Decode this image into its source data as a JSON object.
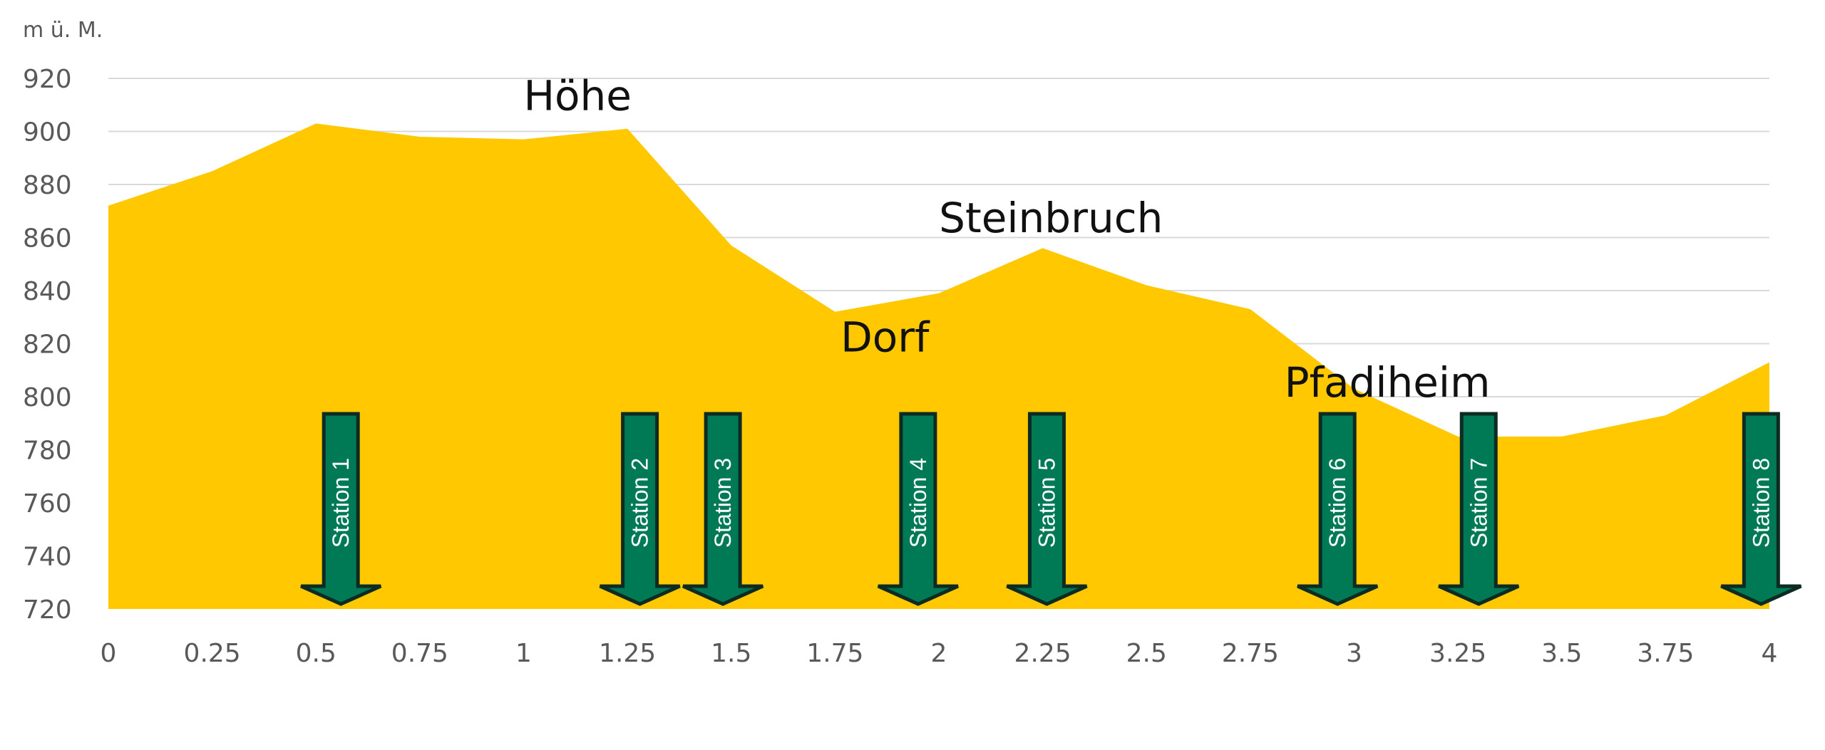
{
  "chart_data": {
    "type": "area",
    "ylabel": "m ü. M.",
    "xlabel": "",
    "x": [
      0,
      0.25,
      0.5,
      0.75,
      1,
      1.25,
      1.5,
      1.75,
      2,
      2.25,
      2.5,
      2.75,
      3,
      3.25,
      3.5,
      3.75,
      4
    ],
    "y": [
      872,
      885,
      903,
      898,
      897,
      901,
      857,
      832,
      839,
      856,
      842,
      833,
      803,
      785,
      785,
      793,
      813
    ],
    "xlim": [
      0,
      4
    ],
    "ylim": [
      720,
      920
    ],
    "x_ticks": [
      "0",
      "0.25",
      "0.5",
      "0.75",
      "1",
      "1.25",
      "1.5",
      "1.75",
      "2",
      "2.25",
      "2.5",
      "2.75",
      "3",
      "3.25",
      "3.5",
      "3.75",
      "4"
    ],
    "y_ticks": [
      "720",
      "740",
      "760",
      "780",
      "800",
      "820",
      "840",
      "860",
      "880",
      "900",
      "920"
    ],
    "grid": true,
    "colors": {
      "area": "#FFC800",
      "station": "#007A55",
      "station_border": "#0D2B23",
      "grid": "#D9D9D9"
    },
    "annotations": [
      {
        "text": "Höhe",
        "x": 1.13,
        "y": 908
      },
      {
        "text": "Steinbruch",
        "x": 2.27,
        "y": 862
      },
      {
        "text": "Dorf",
        "x": 1.87,
        "y": 817
      },
      {
        "text": "Pfadiheim",
        "x": 3.08,
        "y": 800
      }
    ],
    "stations": [
      {
        "label": "Station 1",
        "x": 0.56
      },
      {
        "label": "Station 2",
        "x": 1.28
      },
      {
        "label": "Station 3",
        "x": 1.48
      },
      {
        "label": "Station 4",
        "x": 1.95
      },
      {
        "label": "Station 5",
        "x": 2.26
      },
      {
        "label": "Station 6",
        "x": 2.96
      },
      {
        "label": "Station 7",
        "x": 3.3
      },
      {
        "label": "Station 8",
        "x": 3.98
      }
    ]
  }
}
